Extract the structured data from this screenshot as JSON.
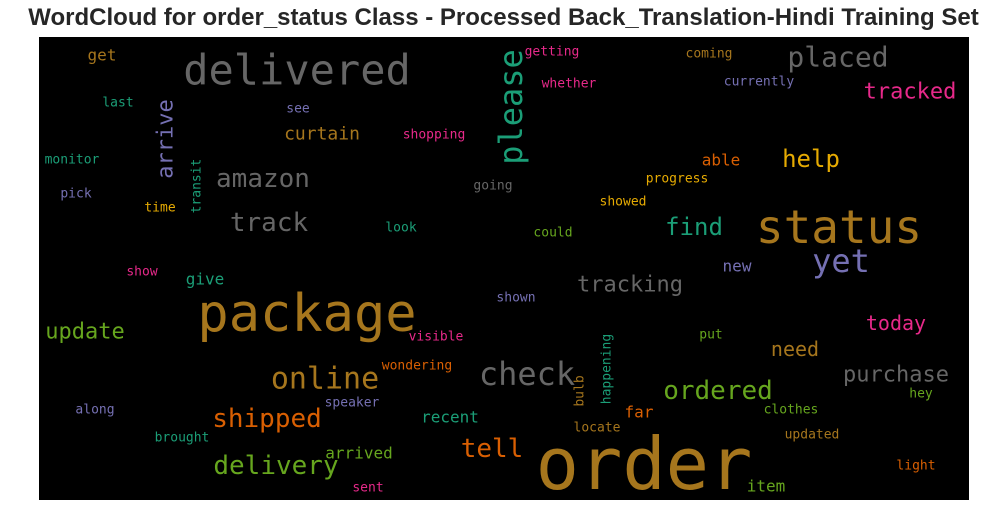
{
  "chart_data": {
    "type": "wordcloud",
    "title": "WordCloud for order_status Class - Processed Back_Translation-Hindi Training Set",
    "background": "#000000",
    "words": [
      {
        "text": "order",
        "weight": 1.0,
        "color": "#a6761d",
        "orientation": "horizontal"
      },
      {
        "text": "package",
        "weight": 0.9,
        "color": "#a6761d",
        "orientation": "horizontal"
      },
      {
        "text": "status",
        "weight": 0.85,
        "color": "#a6761d",
        "orientation": "horizontal"
      },
      {
        "text": "delivered",
        "weight": 0.7,
        "color": "#666666",
        "orientation": "horizontal"
      },
      {
        "text": "check",
        "weight": 0.55,
        "color": "#666666",
        "orientation": "horizontal"
      },
      {
        "text": "please",
        "weight": 0.55,
        "color": "#1b9e77",
        "orientation": "vertical"
      },
      {
        "text": "placed",
        "weight": 0.5,
        "color": "#666666",
        "orientation": "horizontal"
      },
      {
        "text": "yet",
        "weight": 0.55,
        "color": "#7570b3",
        "orientation": "horizontal"
      },
      {
        "text": "online",
        "weight": 0.5,
        "color": "#a6761d",
        "orientation": "horizontal"
      },
      {
        "text": "amazon",
        "weight": 0.45,
        "color": "#666666",
        "orientation": "horizontal"
      },
      {
        "text": "track",
        "weight": 0.45,
        "color": "#666666",
        "orientation": "horizontal"
      },
      {
        "text": "shipped",
        "weight": 0.45,
        "color": "#d95f02",
        "orientation": "horizontal"
      },
      {
        "text": "delivery",
        "weight": 0.45,
        "color": "#66a61e",
        "orientation": "horizontal"
      },
      {
        "text": "ordered",
        "weight": 0.45,
        "color": "#66a61e",
        "orientation": "horizontal"
      },
      {
        "text": "tell",
        "weight": 0.45,
        "color": "#d95f02",
        "orientation": "horizontal"
      },
      {
        "text": "arrive",
        "weight": 0.4,
        "color": "#7570b3",
        "orientation": "vertical"
      },
      {
        "text": "find",
        "weight": 0.4,
        "color": "#1b9e77",
        "orientation": "horizontal"
      },
      {
        "text": "help",
        "weight": 0.4,
        "color": "#e6ab02",
        "orientation": "horizontal"
      },
      {
        "text": "tracked",
        "weight": 0.38,
        "color": "#e7298a",
        "orientation": "horizontal"
      },
      {
        "text": "tracking",
        "weight": 0.38,
        "color": "#666666",
        "orientation": "horizontal"
      },
      {
        "text": "purchase",
        "weight": 0.38,
        "color": "#666666",
        "orientation": "horizontal"
      },
      {
        "text": "update",
        "weight": 0.36,
        "color": "#66a61e",
        "orientation": "horizontal"
      },
      {
        "text": "today",
        "weight": 0.36,
        "color": "#e7298a",
        "orientation": "horizontal"
      },
      {
        "text": "need",
        "weight": 0.35,
        "color": "#a6761d",
        "orientation": "horizontal"
      },
      {
        "text": "curtain",
        "weight": 0.3,
        "color": "#a6761d",
        "orientation": "horizontal"
      },
      {
        "text": "recent",
        "weight": 0.3,
        "color": "#1b9e77",
        "orientation": "horizontal"
      },
      {
        "text": "arrived",
        "weight": 0.3,
        "color": "#66a61e",
        "orientation": "horizontal"
      },
      {
        "text": "give",
        "weight": 0.3,
        "color": "#1b9e77",
        "orientation": "horizontal"
      },
      {
        "text": "new",
        "weight": 0.28,
        "color": "#7570b3",
        "orientation": "horizontal"
      },
      {
        "text": "item",
        "weight": 0.28,
        "color": "#66a61e",
        "orientation": "horizontal"
      },
      {
        "text": "far",
        "weight": 0.28,
        "color": "#d95f02",
        "orientation": "horizontal"
      },
      {
        "text": "get",
        "weight": 0.28,
        "color": "#a6761d",
        "orientation": "horizontal"
      },
      {
        "text": "able",
        "weight": 0.28,
        "color": "#d95f02",
        "orientation": "horizontal"
      },
      {
        "text": "shopping",
        "weight": 0.22,
        "color": "#e7298a",
        "orientation": "horizontal"
      },
      {
        "text": "progress",
        "weight": 0.22,
        "color": "#e6ab02",
        "orientation": "horizontal"
      },
      {
        "text": "showed",
        "weight": 0.22,
        "color": "#e6ab02",
        "orientation": "horizontal"
      },
      {
        "text": "coming",
        "weight": 0.22,
        "color": "#a6761d",
        "orientation": "horizontal"
      },
      {
        "text": "currently",
        "weight": 0.22,
        "color": "#7570b3",
        "orientation": "horizontal"
      },
      {
        "text": "getting",
        "weight": 0.22,
        "color": "#e7298a",
        "orientation": "horizontal"
      },
      {
        "text": "whether",
        "weight": 0.22,
        "color": "#e7298a",
        "orientation": "horizontal"
      },
      {
        "text": "last",
        "weight": 0.2,
        "color": "#1b9e77",
        "orientation": "horizontal"
      },
      {
        "text": "see",
        "weight": 0.2,
        "color": "#7570b3",
        "orientation": "horizontal"
      },
      {
        "text": "monitor",
        "weight": 0.2,
        "color": "#1b9e77",
        "orientation": "horizontal"
      },
      {
        "text": "transit",
        "weight": 0.2,
        "color": "#1b9e77",
        "orientation": "vertical"
      },
      {
        "text": "pick",
        "weight": 0.2,
        "color": "#7570b3",
        "orientation": "horizontal"
      },
      {
        "text": "time",
        "weight": 0.2,
        "color": "#e6ab02",
        "orientation": "horizontal"
      },
      {
        "text": "going",
        "weight": 0.2,
        "color": "#666666",
        "orientation": "horizontal"
      },
      {
        "text": "look",
        "weight": 0.2,
        "color": "#1b9e77",
        "orientation": "horizontal"
      },
      {
        "text": "could",
        "weight": 0.2,
        "color": "#66a61e",
        "orientation": "horizontal"
      },
      {
        "text": "show",
        "weight": 0.2,
        "color": "#e7298a",
        "orientation": "horizontal"
      },
      {
        "text": "shown",
        "weight": 0.2,
        "color": "#7570b3",
        "orientation": "horizontal"
      },
      {
        "text": "visible",
        "weight": 0.2,
        "color": "#e7298a",
        "orientation": "horizontal"
      },
      {
        "text": "put",
        "weight": 0.2,
        "color": "#66a61e",
        "orientation": "horizontal"
      },
      {
        "text": "wondering",
        "weight": 0.2,
        "color": "#d95f02",
        "orientation": "horizontal"
      },
      {
        "text": "bulb",
        "weight": 0.2,
        "color": "#a6761d",
        "orientation": "vertical"
      },
      {
        "text": "happening",
        "weight": 0.2,
        "color": "#1b9e77",
        "orientation": "vertical"
      },
      {
        "text": "hey",
        "weight": 0.2,
        "color": "#66a61e",
        "orientation": "horizontal"
      },
      {
        "text": "along",
        "weight": 0.2,
        "color": "#7570b3",
        "orientation": "horizontal"
      },
      {
        "text": "speaker",
        "weight": 0.2,
        "color": "#7570b3",
        "orientation": "horizontal"
      },
      {
        "text": "clothes",
        "weight": 0.2,
        "color": "#66a61e",
        "orientation": "horizontal"
      },
      {
        "text": "brought",
        "weight": 0.2,
        "color": "#1b9e77",
        "orientation": "horizontal"
      },
      {
        "text": "locate",
        "weight": 0.2,
        "color": "#a6761d",
        "orientation": "horizontal"
      },
      {
        "text": "updated",
        "weight": 0.2,
        "color": "#a6761d",
        "orientation": "horizontal"
      },
      {
        "text": "light",
        "weight": 0.2,
        "color": "#d95f02",
        "orientation": "horizontal"
      },
      {
        "text": "sent",
        "weight": 0.2,
        "color": "#e7298a",
        "orientation": "horizontal"
      }
    ]
  }
}
